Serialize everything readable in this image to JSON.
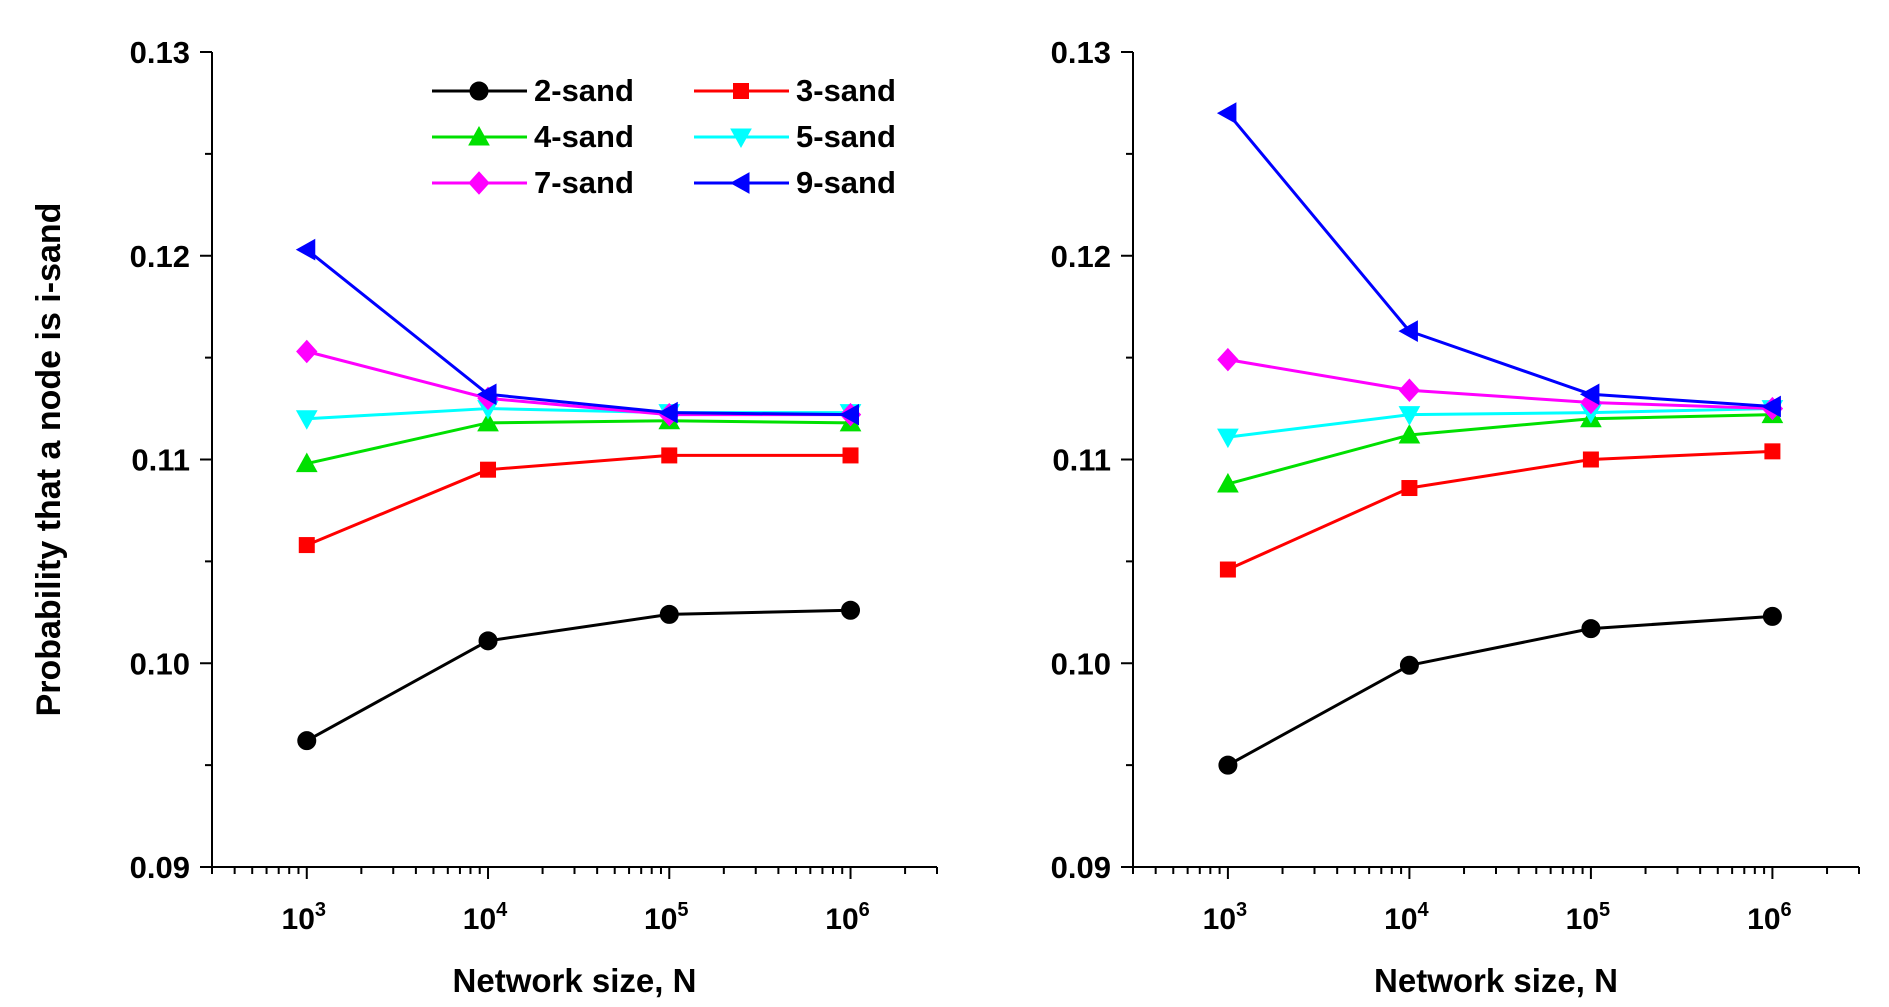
{
  "chart_data": [
    {
      "type": "line",
      "panel": "left",
      "xlabel": "Network size, N",
      "ylabel": "Probability that a node is i-sand",
      "xscale": "log",
      "x": [
        1000,
        10000,
        100000,
        1000000
      ],
      "xlim": [
        300,
        3000000
      ],
      "ylim": [
        0.09,
        0.13
      ],
      "yticks": [
        "0.09",
        "0.10",
        "0.11",
        "0.12",
        "0.13"
      ],
      "xticks": [
        {
          "base": "10",
          "exp": "3"
        },
        {
          "base": "10",
          "exp": "4"
        },
        {
          "base": "10",
          "exp": "5"
        },
        {
          "base": "10",
          "exp": "6"
        }
      ],
      "legend_position": "top-right",
      "series": [
        {
          "name": "2-sand",
          "color": "#000000",
          "marker": "circle",
          "values": [
            0.0962,
            0.1011,
            0.1024,
            0.1026
          ]
        },
        {
          "name": "3-sand",
          "color": "#ff0000",
          "marker": "square",
          "values": [
            0.1058,
            0.1095,
            0.1102,
            0.1102
          ]
        },
        {
          "name": "4-sand",
          "color": "#00e000",
          "marker": "triangle-up",
          "values": [
            0.1098,
            0.1118,
            0.1119,
            0.1118
          ]
        },
        {
          "name": "5-sand",
          "color": "#00ffff",
          "marker": "triangle-down",
          "values": [
            0.112,
            0.1125,
            0.1123,
            0.1123
          ]
        },
        {
          "name": "7-sand",
          "color": "#ff00ff",
          "marker": "diamond",
          "values": [
            0.1153,
            0.113,
            0.1122,
            0.1122
          ]
        },
        {
          "name": "9-sand",
          "color": "#0000ff",
          "marker": "triangle-left",
          "values": [
            0.1203,
            0.1132,
            0.1123,
            0.1122
          ]
        }
      ]
    },
    {
      "type": "line",
      "panel": "right",
      "xlabel": "Network size, N",
      "ylabel": "",
      "xscale": "log",
      "x": [
        1000,
        10000,
        100000,
        1000000
      ],
      "xlim": [
        300,
        3000000
      ],
      "ylim": [
        0.09,
        0.13
      ],
      "yticks": [
        "0.09",
        "0.10",
        "0.11",
        "0.12",
        "0.13"
      ],
      "xticks": [
        {
          "base": "10",
          "exp": "3"
        },
        {
          "base": "10",
          "exp": "4"
        },
        {
          "base": "10",
          "exp": "5"
        },
        {
          "base": "10",
          "exp": "6"
        }
      ],
      "series": [
        {
          "name": "2-sand",
          "color": "#000000",
          "marker": "circle",
          "values": [
            0.095,
            0.0999,
            0.1017,
            0.1023
          ]
        },
        {
          "name": "3-sand",
          "color": "#ff0000",
          "marker": "square",
          "values": [
            0.1046,
            0.1086,
            0.11,
            0.1104
          ]
        },
        {
          "name": "4-sand",
          "color": "#00e000",
          "marker": "triangle-up",
          "values": [
            0.1088,
            0.1112,
            0.112,
            0.1122
          ]
        },
        {
          "name": "5-sand",
          "color": "#00ffff",
          "marker": "triangle-down",
          "values": [
            0.1111,
            0.1122,
            0.1123,
            0.1125
          ]
        },
        {
          "name": "7-sand",
          "color": "#ff00ff",
          "marker": "diamond",
          "values": [
            0.1149,
            0.1134,
            0.1128,
            0.1125
          ]
        },
        {
          "name": "9-sand",
          "color": "#0000ff",
          "marker": "triangle-left",
          "values": [
            0.127,
            0.1163,
            0.1132,
            0.1126
          ]
        }
      ]
    }
  ]
}
